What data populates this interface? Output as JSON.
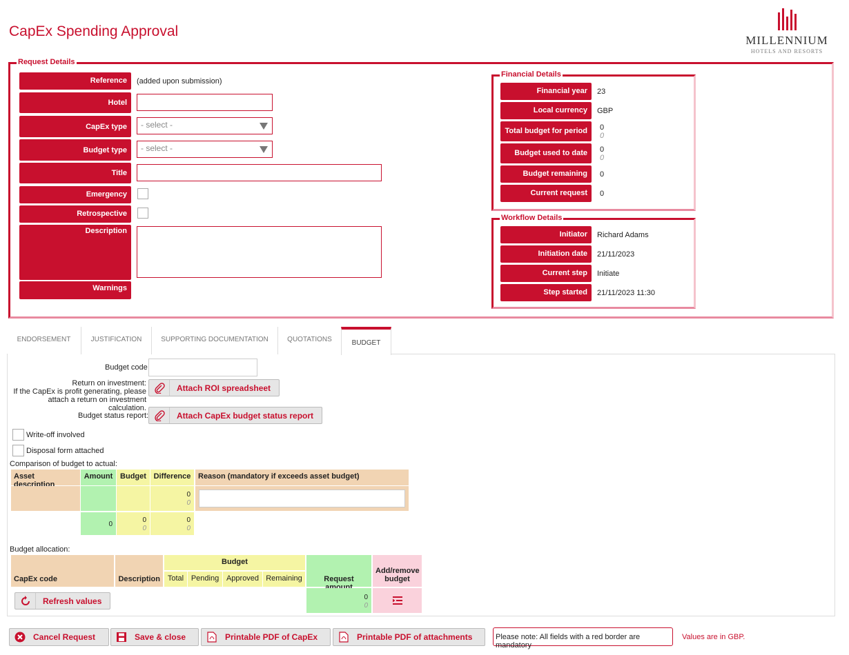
{
  "app": {
    "title": "CapEx Spending Approval",
    "logo_brand": "MILLENNIUM",
    "logo_sub": "HOTELS AND RESORTS",
    "accent": "#c8102e"
  },
  "request": {
    "legend": "Request Details",
    "labels": {
      "reference": "Reference",
      "hotel": "Hotel",
      "capex_type": "CapEx type",
      "budget_type": "Budget type",
      "title": "Title",
      "emergency": "Emergency",
      "retrospective": "Retrospective",
      "description": "Description",
      "warnings": "Warnings"
    },
    "reference_value": "(added upon submission)",
    "capex_select": "- select -",
    "budget_select": "- select -"
  },
  "financial": {
    "legend": "Financial Details",
    "labels": {
      "year": "Financial year",
      "currency": "Local currency",
      "total": "Total budget for period",
      "used": "Budget used to date",
      "remaining": "Budget remaining",
      "current": "Current request"
    },
    "values": {
      "year": "23",
      "currency": "GBP",
      "total": "0",
      "total_sub": "0",
      "used": "0",
      "used_sub": "0",
      "remaining": "0",
      "current": "0"
    }
  },
  "workflow": {
    "legend": "Workflow Details",
    "labels": {
      "initiator": "Initiator",
      "date": "Initiation date",
      "step": "Current step",
      "started": "Step started"
    },
    "values": {
      "initiator": "Richard Adams",
      "date": "21/11/2023",
      "step": "Initiate",
      "started": "21/11/2023 11:30"
    }
  },
  "tabs": [
    "ENDORSEMENT",
    "JUSTIFICATION",
    "SUPPORTING DOCUMENTATION",
    "QUOTATIONS",
    "BUDGET"
  ],
  "budget": {
    "budget_code_label": "Budget code",
    "roi_label_1": "Return on investment:",
    "roi_label_2": "If the CapEx is profit generating, please",
    "roi_label_3": "attach a return on investment calculation.",
    "roi_button": "Attach ROI spreadsheet",
    "status_label": "Budget status report:",
    "status_button": "Attach CapEx budget status report",
    "writeoff": "Write-off involved",
    "disposal": "Disposal form attached",
    "comparison_title": "Comparison of budget to actual:",
    "comparison_headers": [
      "Asset description",
      "Amount",
      "Budget",
      "Difference",
      "Reason (mandatory if exceeds asset budget)"
    ],
    "row_diff": "0",
    "row_diff_sub": "0",
    "total_amount": "0",
    "total_budget": "0",
    "total_budget_sub": "0",
    "total_diff": "0",
    "total_diff_sub": "0",
    "allocation_title": "Budget allocation:",
    "alloc_headers": {
      "code": "CapEx code",
      "desc": "Description",
      "budget": "Budget",
      "total": "Total",
      "pending": "Pending",
      "approved": "Approved",
      "remaining": "Remaining",
      "request": "Request amount",
      "addremove": "Add/remove budget"
    },
    "refresh_button": "Refresh values",
    "request_total": "0",
    "request_total_sub": "0"
  },
  "footer": {
    "cancel": "Cancel Request",
    "save": "Save & close",
    "pdf_capex": "Printable PDF of CapEx",
    "pdf_attach": "Printable PDF of attachments",
    "notice": "Please note: All fields with a red border are mandatory",
    "currency_note": "Values are in GBP."
  }
}
